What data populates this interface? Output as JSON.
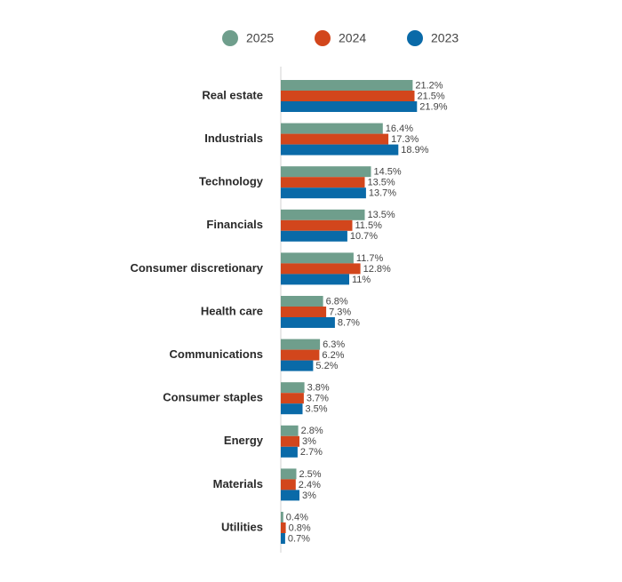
{
  "chart_data": {
    "type": "bar",
    "orientation": "horizontal",
    "categories": [
      "Real estate",
      "Industrials",
      "Technology",
      "Financials",
      "Consumer discretionary",
      "Health care",
      "Communications",
      "Consumer staples",
      "Energy",
      "Materials",
      "Utilities"
    ],
    "series": [
      {
        "name": "2025",
        "color": "#6f9e8c",
        "values": [
          21.2,
          16.4,
          14.5,
          13.5,
          11.7,
          6.8,
          6.3,
          3.8,
          2.8,
          2.5,
          0.4
        ],
        "value_labels": [
          "21.2%",
          "16.4%",
          "14.5%",
          "13.5%",
          "11.7%",
          "6.8%",
          "6.3%",
          "3.8%",
          "2.8%",
          "2.5%",
          "0.4%"
        ]
      },
      {
        "name": "2024",
        "color": "#d2461c",
        "values": [
          21.5,
          17.3,
          13.5,
          11.5,
          12.8,
          7.3,
          6.2,
          3.7,
          3,
          2.4,
          0.8
        ],
        "value_labels": [
          "21.5%",
          "17.3%",
          "13.5%",
          "11.5%",
          "12.8%",
          "7.3%",
          "6.2%",
          "3.7%",
          "3%",
          "2.4%",
          "0.8%"
        ]
      },
      {
        "name": "2023",
        "color": "#0a6aa8",
        "values": [
          21.9,
          18.9,
          13.7,
          10.7,
          11,
          8.7,
          5.2,
          3.5,
          2.7,
          3,
          0.7
        ],
        "value_labels": [
          "21.9%",
          "18.9%",
          "13.7%",
          "10.7%",
          "11%",
          "8.7%",
          "5.2%",
          "3.5%",
          "2.7%",
          "3%",
          "0.7%"
        ]
      }
    ]
  }
}
